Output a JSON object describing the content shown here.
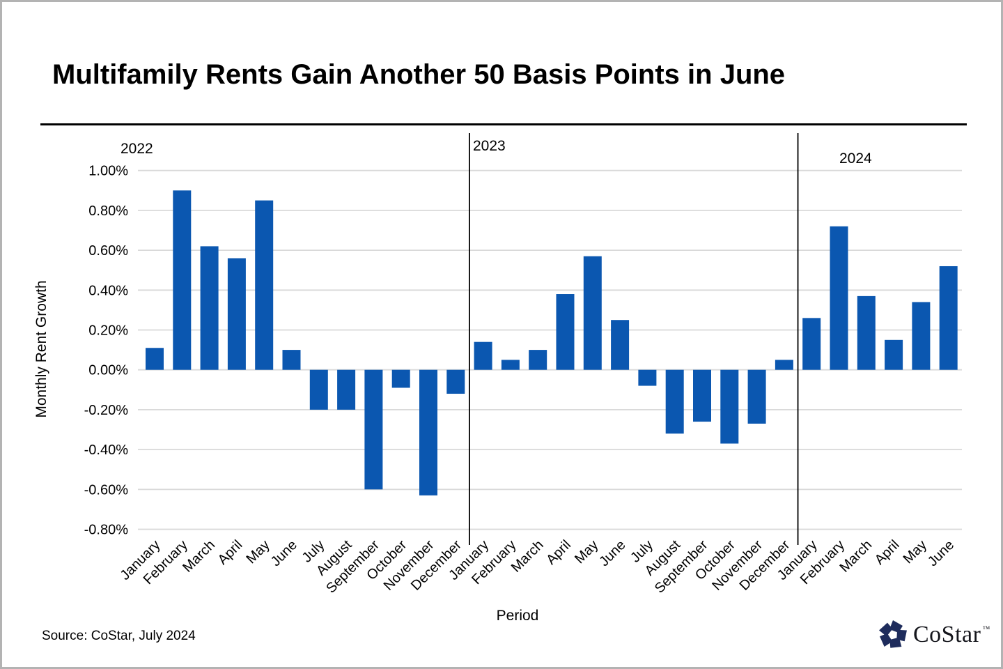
{
  "page": {
    "title": "Multifamily Rents Gain Another 50 Basis Points in June",
    "source_note": "Source: CoStar, July 2024"
  },
  "logo": {
    "name": "CoStar",
    "trademark": "™",
    "icon": "costar-pinwheel-icon",
    "icon_color": "#1e2c5c",
    "text_color": "#15161c"
  },
  "chart_data": {
    "type": "bar",
    "title": "Multifamily Rents Gain Another 50 Basis Points in June",
    "xlabel": "Period",
    "ylabel": "Monthly Rent Growth",
    "unit": "percent",
    "ylim": [
      -0.8,
      1.0
    ],
    "ytick_step": 0.2,
    "ytick_labels": [
      "1.00%",
      "0.80%",
      "0.60%",
      "0.40%",
      "0.20%",
      "0.00%",
      "-0.20%",
      "-0.40%",
      "-0.60%",
      "-0.80%"
    ],
    "grid": true,
    "legend": "none",
    "bar_color": "#0b57b0",
    "gridline_color": "#d9d9d9",
    "divider_color": "#000000",
    "groups": [
      {
        "year": "2022",
        "categories": [
          "January",
          "February",
          "March",
          "April",
          "May",
          "June",
          "July",
          "August",
          "September",
          "October",
          "November",
          "December"
        ],
        "values": [
          0.11,
          0.9,
          0.62,
          0.56,
          0.85,
          0.1,
          -0.2,
          -0.2,
          -0.6,
          -0.09,
          -0.63,
          -0.12
        ]
      },
      {
        "year": "2023",
        "categories": [
          "January",
          "February",
          "March",
          "April",
          "May",
          "June",
          "July",
          "August",
          "September",
          "October",
          "November",
          "December"
        ],
        "values": [
          0.14,
          0.05,
          0.1,
          0.38,
          0.57,
          0.25,
          -0.08,
          -0.32,
          -0.26,
          -0.37,
          -0.27,
          0.05
        ]
      },
      {
        "year": "2024",
        "categories": [
          "January",
          "February",
          "March",
          "April",
          "May",
          "June"
        ],
        "values": [
          0.26,
          0.72,
          0.37,
          0.15,
          0.34,
          0.52
        ]
      }
    ]
  }
}
